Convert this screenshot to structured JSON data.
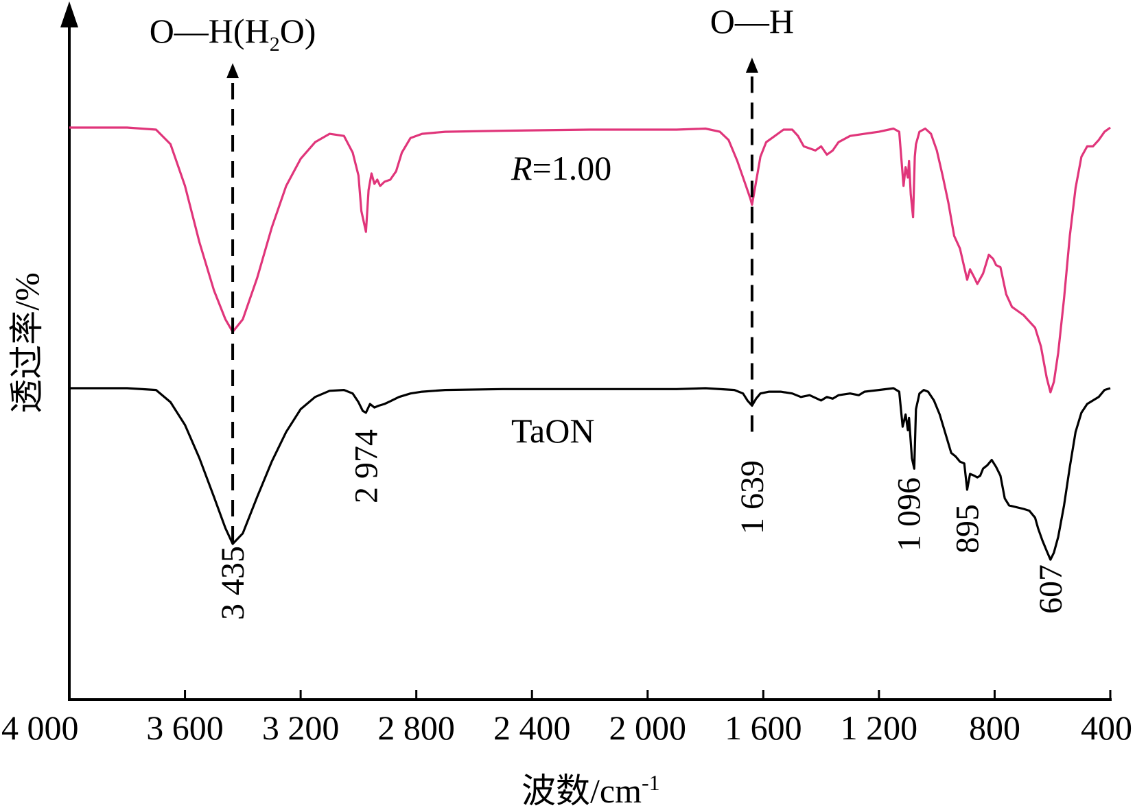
{
  "chart_data": {
    "type": "line",
    "title": "",
    "xlabel": "波数/cm",
    "xlabel_sup": "-1",
    "ylabel": "透过率/%",
    "xlim": [
      4000,
      400
    ],
    "x_reversed": true,
    "xticks": [
      4000,
      3600,
      3200,
      2800,
      2400,
      2000,
      1600,
      1200,
      800,
      400
    ],
    "xtick_labels": [
      "4 000",
      "3 600",
      "3 200",
      "2 800",
      "2 400",
      "2 000",
      "1 600",
      "1 200",
      "800",
      "400"
    ],
    "yticks_shown": false,
    "grid": false,
    "colors": {
      "r100": "#e0357a",
      "taon": "#000000",
      "axis": "#000000"
    },
    "series": [
      {
        "name": "R=1.00",
        "name_italic": "R",
        "name_rest": "=1.00",
        "color": "#e0357a",
        "offset": 0,
        "points": [
          [
            4000,
            100
          ],
          [
            3800,
            100
          ],
          [
            3700,
            99
          ],
          [
            3650,
            92
          ],
          [
            3600,
            72
          ],
          [
            3550,
            45
          ],
          [
            3500,
            22
          ],
          [
            3460,
            8
          ],
          [
            3435,
            2
          ],
          [
            3400,
            8
          ],
          [
            3350,
            28
          ],
          [
            3300,
            52
          ],
          [
            3250,
            72
          ],
          [
            3200,
            85
          ],
          [
            3150,
            93
          ],
          [
            3100,
            97
          ],
          [
            3050,
            96
          ],
          [
            3020,
            88
          ],
          [
            3000,
            77
          ],
          [
            2990,
            60
          ],
          [
            2974,
            50
          ],
          [
            2965,
            70
          ],
          [
            2955,
            78
          ],
          [
            2945,
            73
          ],
          [
            2935,
            75
          ],
          [
            2925,
            72
          ],
          [
            2910,
            74
          ],
          [
            2890,
            75
          ],
          [
            2870,
            79
          ],
          [
            2850,
            88
          ],
          [
            2820,
            95
          ],
          [
            2780,
            97
          ],
          [
            2700,
            98
          ],
          [
            2500,
            98.5
          ],
          [
            2200,
            99
          ],
          [
            1900,
            99
          ],
          [
            1800,
            99.5
          ],
          [
            1750,
            98
          ],
          [
            1720,
            94
          ],
          [
            1690,
            84
          ],
          [
            1660,
            72
          ],
          [
            1645,
            66
          ],
          [
            1639,
            63
          ],
          [
            1630,
            70
          ],
          [
            1610,
            86
          ],
          [
            1590,
            93
          ],
          [
            1560,
            96
          ],
          [
            1530,
            99
          ],
          [
            1500,
            99
          ],
          [
            1480,
            96
          ],
          [
            1460,
            91
          ],
          [
            1440,
            90
          ],
          [
            1420,
            89
          ],
          [
            1400,
            91
          ],
          [
            1380,
            87
          ],
          [
            1360,
            89
          ],
          [
            1340,
            93
          ],
          [
            1300,
            96
          ],
          [
            1250,
            97
          ],
          [
            1200,
            98
          ],
          [
            1150,
            99.5
          ],
          [
            1130,
            98
          ],
          [
            1115,
            72
          ],
          [
            1108,
            81
          ],
          [
            1100,
            76
          ],
          [
            1096,
            84
          ],
          [
            1090,
            68
          ],
          [
            1082,
            57
          ],
          [
            1076,
            86
          ],
          [
            1072,
            92
          ],
          [
            1060,
            98
          ],
          [
            1040,
            99.5
          ],
          [
            1020,
            97
          ],
          [
            1000,
            89
          ],
          [
            980,
            77
          ],
          [
            960,
            64
          ],
          [
            940,
            48
          ],
          [
            920,
            42
          ],
          [
            905,
            33
          ],
          [
            895,
            27
          ],
          [
            885,
            32
          ],
          [
            870,
            28
          ],
          [
            860,
            25
          ],
          [
            840,
            30
          ],
          [
            820,
            39
          ],
          [
            805,
            37
          ],
          [
            795,
            34
          ],
          [
            780,
            33
          ],
          [
            760,
            20
          ],
          [
            740,
            14
          ],
          [
            720,
            12
          ],
          [
            700,
            10
          ],
          [
            680,
            7
          ],
          [
            660,
            4
          ],
          [
            640,
            -5
          ],
          [
            620,
            -20
          ],
          [
            607,
            -27
          ],
          [
            595,
            -22
          ],
          [
            580,
            -8
          ],
          [
            560,
            18
          ],
          [
            540,
            48
          ],
          [
            520,
            71
          ],
          [
            500,
            86
          ],
          [
            480,
            91
          ],
          [
            460,
            91
          ],
          [
            440,
            94
          ],
          [
            420,
            98
          ],
          [
            400,
            100
          ]
        ]
      },
      {
        "name": "TaON",
        "color": "#000000",
        "offset": -129,
        "points": [
          [
            4000,
            100
          ],
          [
            3800,
            100
          ],
          [
            3700,
            99
          ],
          [
            3650,
            92
          ],
          [
            3600,
            79
          ],
          [
            3550,
            60
          ],
          [
            3500,
            38
          ],
          [
            3460,
            20
          ],
          [
            3435,
            11
          ],
          [
            3400,
            17
          ],
          [
            3350,
            38
          ],
          [
            3300,
            58
          ],
          [
            3250,
            75
          ],
          [
            3200,
            88
          ],
          [
            3150,
            95
          ],
          [
            3100,
            98.5
          ],
          [
            3050,
            99
          ],
          [
            3020,
            97
          ],
          [
            3000,
            92
          ],
          [
            2985,
            87
          ],
          [
            2974,
            86
          ],
          [
            2960,
            91
          ],
          [
            2945,
            89
          ],
          [
            2930,
            90
          ],
          [
            2910,
            91
          ],
          [
            2890,
            92.5
          ],
          [
            2860,
            95
          ],
          [
            2820,
            97
          ],
          [
            2780,
            98
          ],
          [
            2700,
            99
          ],
          [
            2500,
            99.5
          ],
          [
            2200,
            99.5
          ],
          [
            1900,
            99.5
          ],
          [
            1800,
            100
          ],
          [
            1700,
            99
          ],
          [
            1670,
            97
          ],
          [
            1655,
            93
          ],
          [
            1639,
            90
          ],
          [
            1625,
            94
          ],
          [
            1610,
            97
          ],
          [
            1580,
            98
          ],
          [
            1540,
            98
          ],
          [
            1500,
            97
          ],
          [
            1470,
            95
          ],
          [
            1440,
            96
          ],
          [
            1400,
            93
          ],
          [
            1380,
            95
          ],
          [
            1360,
            94
          ],
          [
            1340,
            96
          ],
          [
            1300,
            97
          ],
          [
            1270,
            96
          ],
          [
            1250,
            98
          ],
          [
            1200,
            99
          ],
          [
            1150,
            100
          ],
          [
            1130,
            98
          ],
          [
            1118,
            78
          ],
          [
            1108,
            85
          ],
          [
            1100,
            76
          ],
          [
            1096,
            83
          ],
          [
            1086,
            60
          ],
          [
            1078,
            54
          ],
          [
            1072,
            88
          ],
          [
            1060,
            97
          ],
          [
            1045,
            99
          ],
          [
            1030,
            98
          ],
          [
            1010,
            93
          ],
          [
            990,
            85
          ],
          [
            970,
            74
          ],
          [
            950,
            63
          ],
          [
            935,
            61
          ],
          [
            920,
            58
          ],
          [
            905,
            57
          ],
          [
            895,
            42
          ],
          [
            885,
            51
          ],
          [
            870,
            50
          ],
          [
            860,
            49
          ],
          [
            850,
            50
          ],
          [
            840,
            54
          ],
          [
            825,
            56
          ],
          [
            810,
            59
          ],
          [
            795,
            55
          ],
          [
            780,
            50
          ],
          [
            765,
            37
          ],
          [
            750,
            33
          ],
          [
            700,
            31
          ],
          [
            680,
            30
          ],
          [
            660,
            26
          ],
          [
            650,
            20
          ],
          [
            635,
            13
          ],
          [
            620,
            7
          ],
          [
            607,
            2
          ],
          [
            595,
            6
          ],
          [
            580,
            15
          ],
          [
            560,
            33
          ],
          [
            540,
            55
          ],
          [
            520,
            75
          ],
          [
            500,
            86
          ],
          [
            480,
            91
          ],
          [
            460,
            93
          ],
          [
            440,
            95
          ],
          [
            420,
            99
          ],
          [
            400,
            100
          ]
        ]
      }
    ],
    "peak_labels": [
      {
        "label": "3 435",
        "x": 3435,
        "series": "TaON"
      },
      {
        "label": "2 974",
        "x": 2974,
        "series": "TaON"
      },
      {
        "label": "1 639",
        "x": 1639,
        "series": "TaON"
      },
      {
        "label": "1 096",
        "x": 1096,
        "series": "TaON"
      },
      {
        "label": "895",
        "x": 895,
        "series": "TaON"
      },
      {
        "label": "607",
        "x": 607,
        "series": "TaON"
      }
    ],
    "annotations": [
      {
        "main": "O—H(H",
        "sub": "2",
        "tail": "O)",
        "x": 3435,
        "style": "dashed-arrow"
      },
      {
        "main": "O—H",
        "sub": "",
        "tail": "",
        "x": 1639,
        "style": "dashed-arrow"
      }
    ]
  }
}
